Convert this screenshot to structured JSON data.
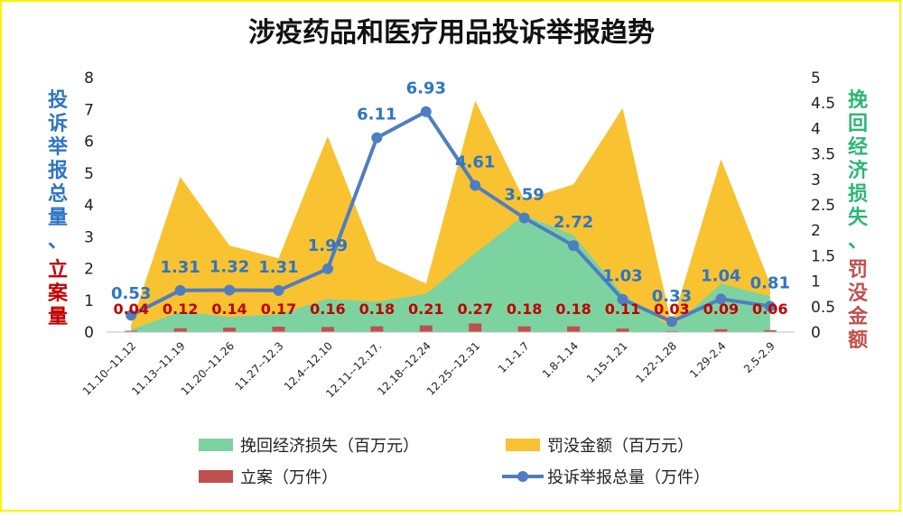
{
  "chart_data": {
    "type": "area",
    "title": "涉疫药品和医疗用品投诉举报趋势",
    "categories": [
      "11.10--11.12",
      "11.13--11.19",
      "11.20--11.26",
      "11.27--12.3",
      "12.4--12.10",
      "12.11--12.17.",
      "12.18--12.24",
      "12.25--12.31",
      "1.1-1.7",
      "1.8-1.14",
      "1.15-1.21",
      "1.22-1.28",
      "1.29-2.4",
      "2.5-2.9"
    ],
    "y_left": {
      "label_chars": [
        "投",
        "诉",
        "举",
        "报",
        "总",
        "量",
        "、"
      ],
      "label_chars_2": [
        "立",
        "案",
        "量"
      ],
      "ylim": [
        0,
        8
      ],
      "ticks": [
        "0",
        "1",
        "2",
        "3",
        "4",
        "5",
        "6",
        "7",
        "8"
      ]
    },
    "y_right": {
      "label_chars": [
        "挽",
        "回",
        "经",
        "济",
        "损",
        "失",
        "、"
      ],
      "label_chars_2": [
        "罚",
        "没",
        "金",
        "额"
      ],
      "ylim": [
        0,
        5
      ],
      "ticks": [
        "0",
        "0.5",
        "1",
        "1.5",
        "2",
        "2.5",
        "3",
        "3.5",
        "4",
        "4.5",
        "5"
      ]
    },
    "series": [
      {
        "name": "罚没金额（百万元）",
        "kind": "area",
        "axis": "right",
        "color": "#F9C231",
        "values": [
          0.15,
          3.05,
          1.7,
          1.45,
          3.85,
          1.4,
          0.95,
          4.55,
          2.6,
          2.9,
          4.4,
          0.15,
          3.4,
          0.95
        ]
      },
      {
        "name": "挽回经济损失（百万元）",
        "kind": "area",
        "axis": "right",
        "color": "#7DD3A0",
        "values": [
          0.05,
          0.4,
          0.3,
          0.35,
          0.65,
          0.6,
          0.75,
          1.55,
          2.3,
          1.9,
          0.75,
          0.08,
          0.95,
          0.7
        ]
      },
      {
        "name": "立案（万件）",
        "kind": "bar",
        "axis": "left",
        "color": "#C0504D",
        "values": [
          0.04,
          0.12,
          0.14,
          0.17,
          0.16,
          0.18,
          0.21,
          0.27,
          0.18,
          0.18,
          0.11,
          0.03,
          0.09,
          0.06
        ],
        "labels": [
          "0.04",
          "0.12",
          "0.14",
          "0.17",
          "0.16",
          "0.18",
          "0.21",
          "0.27",
          "0.18",
          "0.18",
          "0.11",
          "0.03",
          "0.09",
          "0.06"
        ]
      },
      {
        "name": "投诉举报总量（万件）",
        "kind": "line",
        "axis": "left",
        "color": "#4E7EC1",
        "values": [
          0.53,
          1.31,
          1.32,
          1.31,
          1.99,
          6.11,
          6.93,
          4.61,
          3.59,
          2.72,
          1.03,
          0.33,
          1.04,
          0.81
        ],
        "labels": [
          "0.53",
          "1.31",
          "1.32",
          "1.31",
          "1.99",
          "6.11",
          "6.93",
          "4.61",
          "3.59",
          "2.72",
          "1.03",
          "0.33",
          "1.04",
          "0.81"
        ]
      }
    ],
    "legend_position": "bottom",
    "colors": {
      "left_label": "#2E75C6",
      "left_label_2": "#C00000",
      "right_label": "#2BB673",
      "right_label_2": "#C0504D",
      "line_label": "#2E75C6",
      "bar_label": "#C00000",
      "frame_border": "#FFF200"
    }
  }
}
